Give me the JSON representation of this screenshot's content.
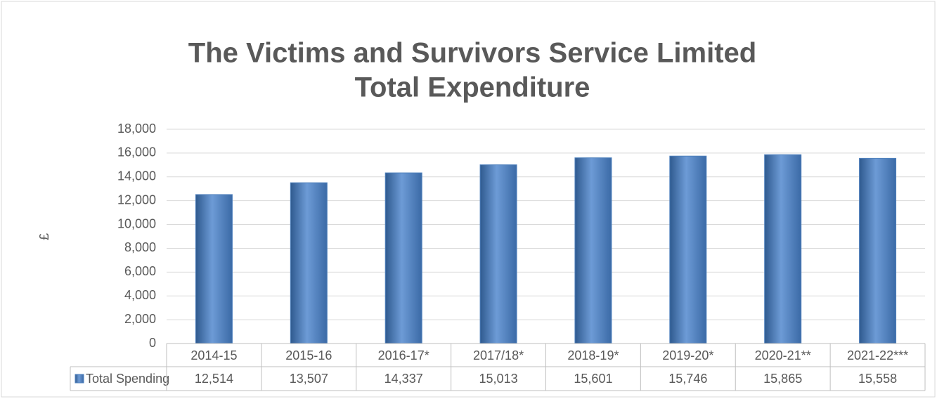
{
  "chart_data": {
    "type": "bar",
    "title": [
      "The Victims and Survivors Service Limited",
      "Total Expenditure"
    ],
    "y_label": "£",
    "categories": [
      "2014-15",
      "2015-16",
      "2016-17*",
      "2017/18*",
      "2018-19*",
      "2019-20*",
      "2020-21**",
      "2021-22***"
    ],
    "series": [
      {
        "name": "Total Spending",
        "color": "#4f81bd",
        "values": [
          12514,
          13507,
          14337,
          15013,
          15601,
          15746,
          15865,
          15558
        ],
        "value_labels": [
          "12,514",
          "13,507",
          "14,337",
          "15,013",
          "15,601",
          "15,746",
          "15,865",
          "15,558"
        ]
      }
    ],
    "ylim": [
      0,
      18000
    ],
    "yticks": [
      0,
      {
        "value": 2000,
        "label": "2,000"
      },
      {
        "value": 4000,
        "label": "4,000"
      },
      {
        "value": 6000,
        "label": "6,000"
      },
      {
        "value": 8000,
        "label": "8,000"
      },
      {
        "value": 10000,
        "label": "10,000"
      },
      {
        "value": 12000,
        "label": "12,000"
      },
      {
        "value": 14000,
        "label": "14,000"
      },
      {
        "value": 16000,
        "label": "16,000"
      },
      {
        "value": 18000,
        "label": "18,000"
      }
    ],
    "grid": true,
    "data_table": true
  }
}
